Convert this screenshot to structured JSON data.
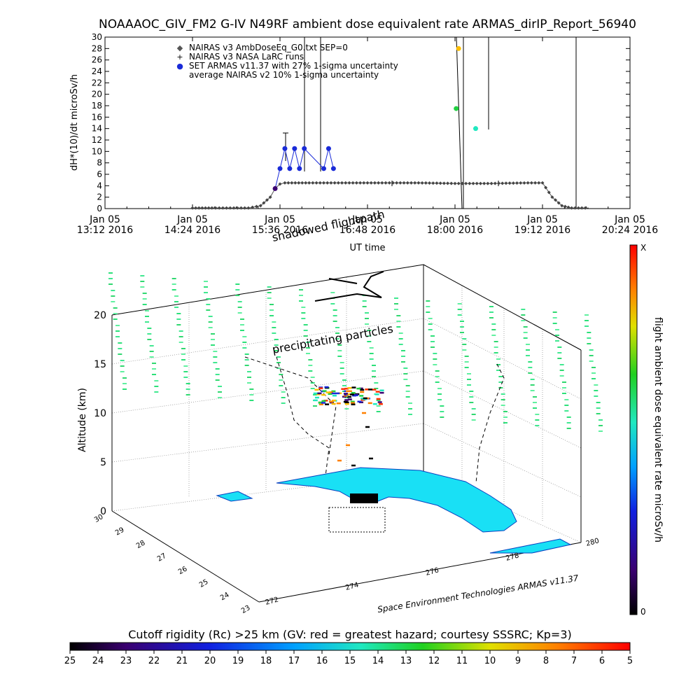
{
  "header": {
    "title": "NOAAAOC_GIV_FM2 G-IV   N49RF  ambient dose equivalent rate ARMAS_dirIP_Report_56940"
  },
  "chart_data": [
    {
      "type": "scatter",
      "ylabel": "dH*(10)/dt microSv/h",
      "xlabel": "UT time",
      "ylim": [
        0,
        30
      ],
      "yticks": [
        0,
        2,
        4,
        6,
        8,
        10,
        12,
        14,
        16,
        18,
        20,
        22,
        24,
        26,
        28,
        30
      ],
      "xticks": [
        {
          "line1": "Jan 05",
          "line2": "13:12 2016"
        },
        {
          "line1": "Jan 05",
          "line2": "14:24 2016"
        },
        {
          "line1": "Jan 05",
          "line2": "15:36 2016"
        },
        {
          "line1": "Jan 05",
          "line2": "16:48 2016"
        },
        {
          "line1": "Jan 05",
          "line2": "18:00 2016"
        },
        {
          "line1": "Jan 05",
          "line2": "19:12 2016"
        },
        {
          "line1": "Jan 05",
          "line2": "20:24 2016"
        }
      ],
      "legend": [
        {
          "symbol": "◆",
          "label": "NAIRAS v3 AmbDoseEq_G0.txt SEP=0",
          "color": "#555555"
        },
        {
          "symbol": "+",
          "label": "NAIRAS v3 NASA LaRC runs",
          "color": "#000000"
        },
        {
          "symbol": "●",
          "label": "SET ARMAS v11.37 with 27% 1-sigma uncertainty",
          "color": "#1a2bd8"
        },
        {
          "symbol": "",
          "label": "average NAIRAS v2 10% 1-sigma uncertainty",
          "color": "#000000"
        }
      ],
      "legend_position": "top-left",
      "series": [
        {
          "name": "NAIRAS v3 AmbDoseEq_G0.txt SEP=0",
          "x": [
            "14:24",
            "14:40",
            "14:55",
            "15:10",
            "15:20",
            "15:28",
            "15:32",
            "15:36",
            "15:40",
            "16:00",
            "16:30",
            "17:00",
            "17:30",
            "18:00",
            "18:30",
            "19:00",
            "19:12",
            "19:20",
            "19:28",
            "19:36",
            "19:50"
          ],
          "y": [
            0.1,
            0.1,
            0.1,
            0.1,
            0.5,
            2.0,
            3.5,
            4.3,
            4.5,
            4.5,
            4.5,
            4.5,
            4.5,
            4.4,
            4.4,
            4.5,
            4.5,
            2.0,
            0.5,
            0.1,
            0.1
          ]
        },
        {
          "name": "SET ARMAS v11.37 with 27% 1-sigma uncertainty",
          "x": [
            "15:32",
            "15:36",
            "15:40",
            "15:44",
            "15:48",
            "15:52",
            "15:56",
            "16:12",
            "16:16",
            "16:20",
            "18:01",
            "18:03",
            "18:17"
          ],
          "y": [
            3.5,
            7.0,
            10.5,
            7.0,
            10.5,
            7.0,
            10.5,
            7.0,
            10.5,
            7.0,
            17.5,
            28.0,
            14.0
          ]
        }
      ]
    },
    {
      "type": "scatter",
      "zlabel": "Altitude (km)",
      "ztick_labels": [
        "0",
        "5",
        "10",
        "15",
        "20"
      ],
      "lat_tick_labels": [
        "30",
        "29",
        "28",
        "27",
        "26",
        "25",
        "24",
        "23"
      ],
      "lon_tick_labels": [
        "272",
        "274",
        "276",
        "278",
        "280"
      ],
      "annotations": [
        "shadowed flightpath",
        "precipitating particles"
      ],
      "credit": "Space Environment Technologies ARMAS v11.37",
      "colorbar_label": "flight ambient dose equivalent rate microSv/h",
      "colorbar_top": "X",
      "colorbar_bottom": "0"
    }
  ],
  "colorbar": {
    "title": "Cutoff rigidity (Rc) >25 km (GV: red = greatest hazard; courtesy SSSRC; Kp=3)",
    "tick_labels": [
      "25",
      "24",
      "23",
      "22",
      "21",
      "20",
      "19",
      "18",
      "17",
      "16",
      "15",
      "14",
      "13",
      "12",
      "11",
      "10",
      "9",
      "8",
      "7",
      "6",
      "5"
    ]
  },
  "colors": {
    "armas_blue": "#1a2bd8",
    "land_cyan": "#19e0f5",
    "rigidity_green": "#2de07a"
  }
}
